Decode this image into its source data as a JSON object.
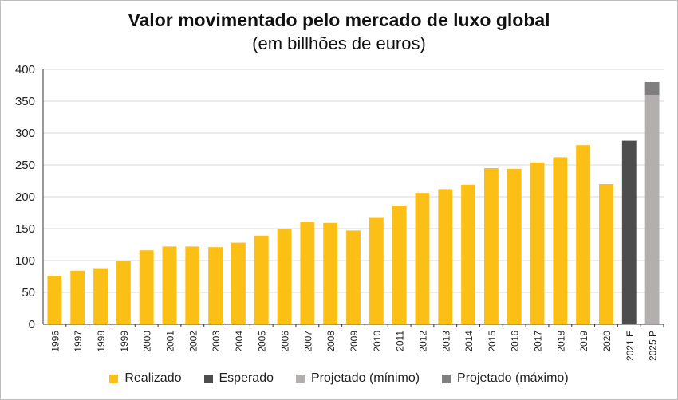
{
  "chart_data": {
    "type": "bar",
    "title": "Valor movimentado pelo mercado de luxo global",
    "subtitle": "(em billhões de euros)",
    "xlabel": "",
    "ylabel": "",
    "ylim": [
      0,
      400
    ],
    "yticks": [
      0,
      50,
      100,
      150,
      200,
      250,
      300,
      350,
      400
    ],
    "grid": true,
    "legend_position": "bottom",
    "categories": [
      "1996",
      "1997",
      "1998",
      "1999",
      "2000",
      "2001",
      "2002",
      "2003",
      "2004",
      "2005",
      "2006",
      "2007",
      "2008",
      "2009",
      "2010",
      "2011",
      "2012",
      "2013",
      "2014",
      "2015",
      "2016",
      "2017",
      "2018",
      "2019",
      "2020",
      "2021 E",
      "2025 P"
    ],
    "series": [
      {
        "name": "Realizado",
        "color": "#FBBF16",
        "values": [
          76,
          84,
          88,
          99,
          116,
          122,
          122,
          121,
          128,
          139,
          150,
          161,
          159,
          147,
          168,
          186,
          206,
          212,
          219,
          245,
          244,
          254,
          262,
          281,
          220,
          null,
          null
        ]
      },
      {
        "name": "Esperado",
        "color": "#4D4D4D",
        "values": [
          null,
          null,
          null,
          null,
          null,
          null,
          null,
          null,
          null,
          null,
          null,
          null,
          null,
          null,
          null,
          null,
          null,
          null,
          null,
          null,
          null,
          null,
          null,
          null,
          null,
          288,
          null
        ]
      },
      {
        "name": "Projetado (mínimo)",
        "color": "#B3AFAF",
        "values": [
          null,
          null,
          null,
          null,
          null,
          null,
          null,
          null,
          null,
          null,
          null,
          null,
          null,
          null,
          null,
          null,
          null,
          null,
          null,
          null,
          null,
          null,
          null,
          null,
          null,
          null,
          360
        ]
      },
      {
        "name": "Projetado (máximo)",
        "color": "#7F7F7F",
        "values": [
          null,
          null,
          null,
          null,
          null,
          null,
          null,
          null,
          null,
          null,
          null,
          null,
          null,
          null,
          null,
          null,
          null,
          null,
          null,
          null,
          null,
          null,
          null,
          null,
          null,
          null,
          380
        ]
      }
    ]
  }
}
